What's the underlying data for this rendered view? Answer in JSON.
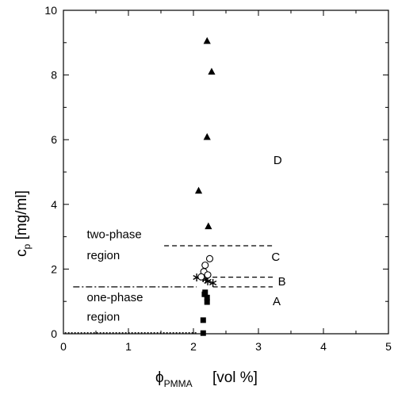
{
  "chart_data": {
    "type": "scatter",
    "xlabel": {
      "symbol": "ϕ",
      "subscript": "PMMA",
      "unit": "[vol %]"
    },
    "ylabel": {
      "symbol": "c",
      "subscript": "p",
      "unit": "[mg/ml]"
    },
    "xlim": [
      0,
      5
    ],
    "ylim": [
      0,
      10
    ],
    "xticks": [
      "0",
      "1",
      "2",
      "3",
      "4",
      "5"
    ],
    "yticks": [
      "0",
      "2",
      "4",
      "6",
      "8",
      "10"
    ],
    "series": [
      {
        "marker": "square",
        "points": [
          [
            2.15,
            0.02
          ],
          [
            2.15,
            0.42
          ],
          [
            2.17,
            1.22
          ],
          [
            2.18,
            1.28
          ],
          [
            2.21,
            1.12
          ],
          [
            2.21,
            0.98
          ]
        ]
      },
      {
        "marker": "star",
        "points": [
          [
            2.05,
            1.74
          ],
          [
            2.15,
            1.72
          ],
          [
            2.19,
            1.68
          ],
          [
            2.22,
            1.62
          ],
          [
            2.3,
            1.57
          ]
        ]
      },
      {
        "marker": "open-circle",
        "points": [
          [
            2.16,
            1.92
          ],
          [
            2.22,
            1.82
          ],
          [
            2.18,
            2.12
          ],
          [
            2.25,
            2.32
          ],
          [
            2.12,
            1.76
          ]
        ]
      },
      {
        "marker": "triangle",
        "points": [
          [
            2.21,
            9.05
          ],
          [
            2.28,
            8.1
          ],
          [
            2.21,
            6.08
          ],
          [
            2.08,
            4.42
          ],
          [
            2.23,
            3.32
          ]
        ]
      }
    ],
    "boundaries": [
      {
        "style": "dashed",
        "x": [
          1.55,
          3.22
        ],
        "y": [
          2.72,
          2.72
        ]
      },
      {
        "style": "dashed",
        "x": [
          2.05,
          3.22
        ],
        "y": [
          1.75,
          1.75
        ]
      },
      {
        "style": "dashed",
        "x": [
          2.3,
          3.22
        ],
        "y": [
          1.45,
          1.45
        ]
      },
      {
        "style": "dashdot",
        "x": [
          0.15,
          2.05
        ],
        "y": [
          1.45,
          1.45
        ]
      },
      {
        "style": "dotted",
        "x": [
          0.02,
          2.05
        ],
        "y": [
          0.03,
          0.03
        ]
      }
    ],
    "annotations": [
      {
        "text": "two-phase",
        "x": 0.36,
        "y": 2.95
      },
      {
        "text": "region",
        "x": 0.36,
        "y": 2.3
      },
      {
        "text": "one-phase",
        "x": 0.36,
        "y": 1.0
      },
      {
        "text": "region",
        "x": 0.36,
        "y": 0.4
      },
      {
        "text": "A",
        "x": 3.22,
        "y": 0.88
      },
      {
        "text": "B",
        "x": 3.3,
        "y": 1.5
      },
      {
        "text": "C",
        "x": 3.2,
        "y": 2.25
      },
      {
        "text": "D",
        "x": 3.23,
        "y": 5.25
      }
    ]
  }
}
